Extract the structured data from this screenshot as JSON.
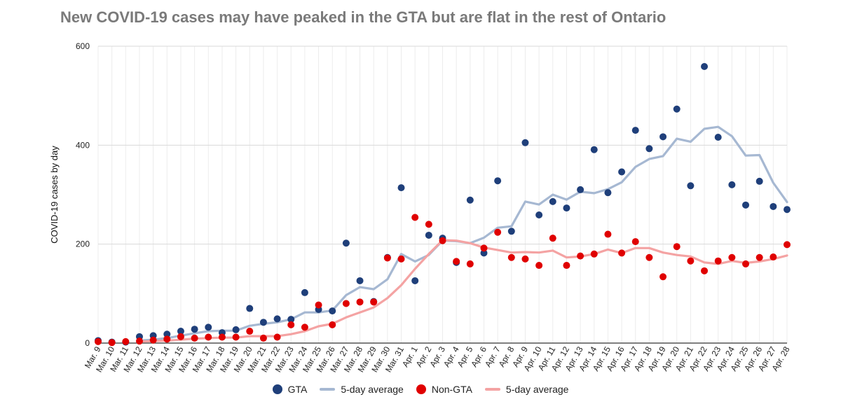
{
  "chart_data": {
    "type": "scatter",
    "title": "New COVID-19 cases may have peaked in the GTA but are flat in the rest of Ontario",
    "xlabel": "",
    "ylabel": "COVID-19 cases by day",
    "ylim": [
      0,
      600
    ],
    "yticks": [
      0,
      200,
      400,
      600
    ],
    "grid": true,
    "legend_position": "bottom",
    "categories": [
      "Mar. 9",
      "Mar. 10",
      "Mar. 11",
      "Mar. 12",
      "Mar. 13",
      "Mar. 14",
      "Mar. 15",
      "Mar. 16",
      "Mar. 17",
      "Mar. 18",
      "Mar. 19",
      "Mar. 20",
      "Mar. 21",
      "Mar. 22",
      "Mar. 23",
      "Mar. 24",
      "Mar. 25",
      "Mar. 26",
      "Mar. 27",
      "Mar. 28",
      "Mar. 29",
      "Mar. 30",
      "Mar. 31",
      "Apr. 1",
      "Apr. 2",
      "Apr. 3",
      "Apr. 4",
      "Apr. 5",
      "Apr. 6",
      "Apr. 7",
      "Apr. 8",
      "Apr. 9",
      "Apr. 10",
      "Apr. 11",
      "Apr. 12",
      "Apr. 13",
      "Apr. 14",
      "Apr. 15",
      "Apr. 16",
      "Apr. 17",
      "Apr. 18",
      "Apr. 19",
      "Apr. 20",
      "Apr. 21",
      "Apr. 22",
      "Apr. 23",
      "Apr. 24",
      "Apr. 25",
      "Apr. 26",
      "Apr. 27",
      "Apr. 28"
    ],
    "series": [
      {
        "name": "GTA",
        "kind": "points",
        "color": "#1f3f7a",
        "values": [
          5,
          2,
          2,
          13,
          15,
          18,
          24,
          28,
          32,
          21,
          27,
          70,
          42,
          49,
          48,
          102,
          68,
          65,
          202,
          126,
          84,
          173,
          314,
          126,
          218,
          212,
          163,
          289,
          182,
          328,
          226,
          405,
          259,
          286,
          273,
          310,
          391,
          304,
          346,
          430,
          393,
          417,
          473,
          318,
          559,
          416,
          320,
          279,
          327,
          276,
          270
        ]
      },
      {
        "name": "5-day average",
        "kind": "line",
        "color": "#a6b8d2",
        "values": [
          null,
          null,
          null,
          5,
          7,
          10,
          15,
          20,
          24,
          25,
          25,
          35,
          39,
          42,
          48,
          62,
          62,
          66,
          97,
          113,
          109,
          129,
          180,
          165,
          178,
          207,
          206,
          202,
          213,
          233,
          236,
          286,
          280,
          300,
          290,
          306,
          303,
          311,
          325,
          356,
          372,
          378,
          413,
          407,
          433,
          437,
          418,
          379,
          380,
          324,
          285
        ]
      },
      {
        "name": "Non-GTA",
        "kind": "points",
        "color": "#e00000",
        "values": [
          3,
          1,
          3,
          4,
          6,
          8,
          13,
          10,
          12,
          12,
          12,
          24,
          10,
          12,
          37,
          32,
          77,
          37,
          80,
          83,
          83,
          172,
          170,
          254,
          240,
          207,
          165,
          160,
          192,
          224,
          173,
          170,
          157,
          212,
          157,
          176,
          180,
          220,
          182,
          205,
          173,
          134,
          195,
          166,
          146,
          166,
          173,
          160,
          173,
          174,
          199
        ]
      },
      {
        "name": "5-day average",
        "kind": "line",
        "color": "#f4a3a3",
        "values": [
          null,
          null,
          null,
          3,
          4,
          5,
          7,
          9,
          10,
          11,
          11,
          14,
          14,
          14,
          18,
          24,
          34,
          39,
          52,
          62,
          72,
          91,
          117,
          150,
          180,
          208,
          207,
          202,
          193,
          188,
          183,
          184,
          183,
          187,
          173,
          175,
          180,
          189,
          182,
          192,
          192,
          183,
          178,
          175,
          163,
          160,
          166,
          162,
          165,
          170,
          177
        ]
      }
    ]
  },
  "legend": [
    {
      "label": "GTA",
      "kind": "dot",
      "color": "#1f3f7a"
    },
    {
      "label": "5-day average",
      "kind": "line",
      "color": "#a6b8d2"
    },
    {
      "label": "Non-GTA",
      "kind": "dot",
      "color": "#e00000"
    },
    {
      "label": "5-day average",
      "kind": "line",
      "color": "#f4a3a3"
    }
  ]
}
